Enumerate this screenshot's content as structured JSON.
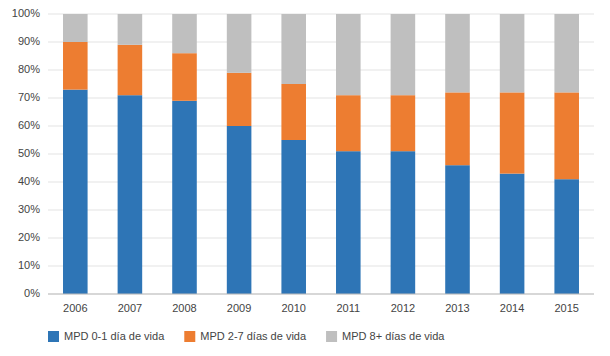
{
  "chart_data": {
    "type": "bar",
    "stacked": true,
    "categories": [
      "2006",
      "2007",
      "2008",
      "2009",
      "2010",
      "2011",
      "2012",
      "2013",
      "2014",
      "2015"
    ],
    "series": [
      {
        "name": "MPD 0-1 día de vida",
        "color": "#2E75B6",
        "values": [
          73,
          71,
          69,
          60,
          55,
          51,
          51,
          46,
          43,
          41
        ]
      },
      {
        "name": "MPD 2-7 días de vida",
        "color": "#ED7D31",
        "values": [
          17,
          18,
          17,
          19,
          20,
          20,
          20,
          26,
          29,
          31
        ]
      },
      {
        "name": "MPD 8+ días de vida",
        "color": "#BFBFBF",
        "values": [
          10,
          11,
          14,
          21,
          25,
          29,
          29,
          28,
          28,
          28
        ]
      }
    ],
    "ylim": [
      0,
      100
    ],
    "yticks": [
      {
        "value": 0,
        "label": "0%"
      },
      {
        "value": 10,
        "label": "10%"
      },
      {
        "value": 20,
        "label": "20%"
      },
      {
        "value": 30,
        "label": "30%"
      },
      {
        "value": 40,
        "label": "40%"
      },
      {
        "value": 50,
        "label": "50%"
      },
      {
        "value": 60,
        "label": "60%"
      },
      {
        "value": 70,
        "label": "70%"
      },
      {
        "value": 80,
        "label": "80%"
      },
      {
        "value": 90,
        "label": "90%"
      },
      {
        "value": 100,
        "label": "100%"
      }
    ],
    "grid": true,
    "legend": "bottom"
  }
}
